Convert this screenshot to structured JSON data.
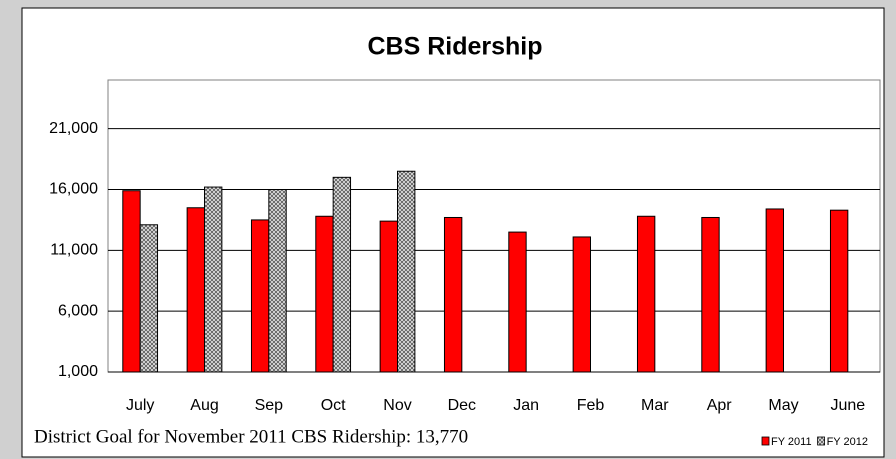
{
  "chart_data": {
    "type": "bar",
    "title": "CBS Ridership",
    "categories": [
      "July",
      "Aug",
      "Sep",
      "Oct",
      "Nov",
      "Dec",
      "Jan",
      "Feb",
      "Mar",
      "Apr",
      "May",
      "June"
    ],
    "series": [
      {
        "name": "FY 2011",
        "color": "#ff0000",
        "values": [
          15900,
          14500,
          13500,
          13800,
          13400,
          13700,
          12500,
          12100,
          13800,
          13700,
          14400,
          14300
        ]
      },
      {
        "name": "FY 2012",
        "color": "#c0c0c0",
        "values": [
          13100,
          16200,
          16000,
          17000,
          17500,
          null,
          null,
          null,
          null,
          null,
          null,
          null
        ]
      }
    ],
    "ylim": [
      1000,
      25000
    ],
    "yticks": [
      {
        "value": 1000,
        "label": "1,000"
      },
      {
        "value": 6000,
        "label": "6,000"
      },
      {
        "value": 11000,
        "label": "11,000"
      },
      {
        "value": 16000,
        "label": "16,000"
      },
      {
        "value": 21000,
        "label": "21,000"
      }
    ],
    "grid": true,
    "annotation": "District Goal for November 2011 CBS Ridership:  13,770",
    "legend": "bottom-right"
  }
}
